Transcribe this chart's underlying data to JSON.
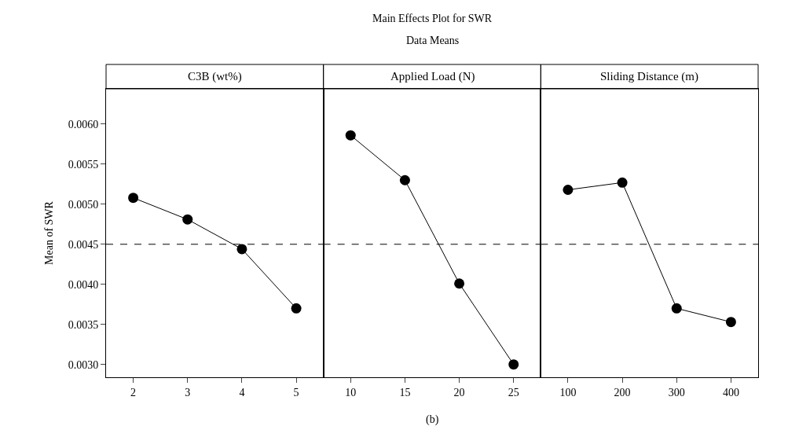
{
  "chart_data": [
    {
      "type": "line",
      "title": "C3B (wt%)",
      "ylabel": "Mean of SWR",
      "annotations": [
        "Main Effects Plot for SWR",
        "Data Means",
        "(b)"
      ],
      "categories": [
        "2",
        "3",
        "4",
        "5"
      ],
      "values": [
        0.00508,
        0.00481,
        0.00444,
        0.0037
      ],
      "color": "#000000",
      "marker": "circle",
      "line_style": "solid",
      "ylim": [
        0.00284,
        0.00644
      ],
      "yticks": [
        {
          "value": 0.003,
          "label": "0.0030"
        },
        {
          "value": 0.0035,
          "label": "0.0035"
        },
        {
          "value": 0.004,
          "label": "0.0040"
        },
        {
          "value": 0.0045,
          "label": "0.0045"
        },
        {
          "value": 0.005,
          "label": "0.0050"
        },
        {
          "value": 0.0055,
          "label": "0.0055"
        },
        {
          "value": 0.006,
          "label": "0.0060"
        }
      ],
      "ref_lines": [
        {
          "axis": "y",
          "value": 0.0045,
          "line_style": "dashed",
          "color": "#000000"
        }
      ],
      "legend": false
    },
    {
      "type": "line",
      "title": "Applied Load (N)",
      "categories": [
        "10",
        "15",
        "20",
        "25"
      ],
      "values": [
        0.00586,
        0.0053,
        0.00401,
        0.003
      ],
      "color": "#000000",
      "marker": "circle",
      "line_style": "solid",
      "ylim": [
        0.00284,
        0.00644
      ],
      "tick_labels": "x",
      "ref_lines": [
        {
          "axis": "y",
          "value": 0.0045,
          "line_style": "dashed",
          "color": "#000000"
        }
      ],
      "legend": false
    },
    {
      "type": "line",
      "title": "Sliding Distance (m)",
      "categories": [
        "100",
        "200",
        "300",
        "400"
      ],
      "values": [
        0.00518,
        0.00527,
        0.0037,
        0.00353
      ],
      "color": "#000000",
      "marker": "circle",
      "line_style": "solid",
      "ylim": [
        0.00284,
        0.00644
      ],
      "tick_labels": "x",
      "ref_lines": [
        {
          "axis": "y",
          "value": 0.0045,
          "line_style": "dashed",
          "color": "#000000"
        }
      ],
      "legend": false
    }
  ]
}
